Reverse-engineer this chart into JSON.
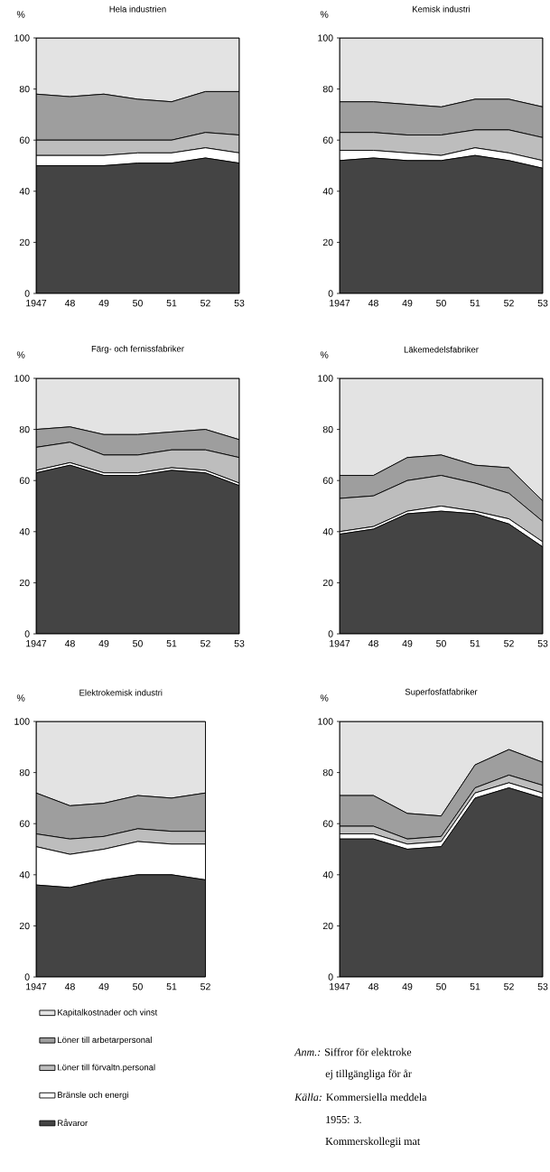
{
  "chart_data": [
    {
      "type": "area",
      "stacked": true,
      "title": "Hela industrien",
      "ylabel": "%",
      "categories": [
        "1947",
        "48",
        "49",
        "50",
        "51",
        "52",
        "53"
      ],
      "ylim": [
        0,
        100
      ],
      "yticks": [
        0,
        20,
        40,
        60,
        80,
        100
      ],
      "series": [
        {
          "color": "#444444",
          "values": [
            50,
            50,
            50,
            51,
            51,
            53,
            51
          ]
        },
        {
          "color": "#ffffff",
          "values": [
            4,
            4,
            4,
            4,
            4,
            4,
            4
          ]
        },
        {
          "color": "#bdbdbd",
          "values": [
            6,
            6,
            6,
            5,
            5,
            6,
            7
          ]
        },
        {
          "color": "#9e9e9e",
          "values": [
            18,
            17,
            18,
            16,
            15,
            16,
            17
          ]
        },
        {
          "color": "#e3e3e3",
          "values": [
            22,
            23,
            22,
            24,
            25,
            21,
            21
          ]
        }
      ]
    },
    {
      "type": "area",
      "stacked": true,
      "title": "Kemisk industri",
      "ylabel": "%",
      "categories": [
        "1947",
        "48",
        "49",
        "50",
        "51",
        "52",
        "53"
      ],
      "ylim": [
        0,
        100
      ],
      "yticks": [
        0,
        20,
        40,
        60,
        80,
        100
      ],
      "series": [
        {
          "color": "#444444",
          "values": [
            52,
            53,
            52,
            52,
            54,
            52,
            49
          ]
        },
        {
          "color": "#ffffff",
          "values": [
            4,
            3,
            3,
            2,
            3,
            3,
            3
          ]
        },
        {
          "color": "#bdbdbd",
          "values": [
            7,
            7,
            7,
            8,
            7,
            9,
            9
          ]
        },
        {
          "color": "#9e9e9e",
          "values": [
            12,
            12,
            12,
            11,
            12,
            12,
            12
          ]
        },
        {
          "color": "#e3e3e3",
          "values": [
            25,
            25,
            26,
            27,
            24,
            24,
            27
          ]
        }
      ]
    },
    {
      "type": "area",
      "stacked": true,
      "title": "Färg- och fernissfabriker",
      "ylabel": "%",
      "categories": [
        "1947",
        "48",
        "49",
        "50",
        "51",
        "52",
        "53"
      ],
      "ylim": [
        0,
        100
      ],
      "yticks": [
        0,
        20,
        40,
        60,
        80,
        100
      ],
      "series": [
        {
          "color": "#444444",
          "values": [
            63,
            66,
            62,
            62,
            64,
            63,
            58
          ]
        },
        {
          "color": "#ffffff",
          "values": [
            1,
            1,
            1,
            1,
            1,
            1,
            1
          ]
        },
        {
          "color": "#bdbdbd",
          "values": [
            9,
            8,
            7,
            7,
            7,
            8,
            10
          ]
        },
        {
          "color": "#9e9e9e",
          "values": [
            7,
            6,
            8,
            8,
            7,
            8,
            7
          ]
        },
        {
          "color": "#e3e3e3",
          "values": [
            20,
            19,
            22,
            22,
            21,
            20,
            24
          ]
        }
      ]
    },
    {
      "type": "area",
      "stacked": true,
      "title": "Läkemedelsfabriker",
      "ylabel": "%",
      "categories": [
        "1947",
        "48",
        "49",
        "50",
        "51",
        "52",
        "53"
      ],
      "ylim": [
        0,
        100
      ],
      "yticks": [
        0,
        20,
        40,
        60,
        80,
        100
      ],
      "series": [
        {
          "color": "#444444",
          "values": [
            39,
            41,
            47,
            48,
            47,
            43,
            34
          ]
        },
        {
          "color": "#ffffff",
          "values": [
            1,
            1,
            1,
            2,
            1,
            2,
            2
          ]
        },
        {
          "color": "#bdbdbd",
          "values": [
            13,
            12,
            12,
            12,
            11,
            10,
            8
          ]
        },
        {
          "color": "#9e9e9e",
          "values": [
            9,
            8,
            9,
            8,
            7,
            10,
            8
          ]
        },
        {
          "color": "#e3e3e3",
          "values": [
            38,
            38,
            31,
            30,
            34,
            35,
            48
          ]
        }
      ]
    },
    {
      "type": "area",
      "stacked": true,
      "title": "Elektrokemisk industri",
      "ylabel": "%",
      "categories": [
        "1947",
        "48",
        "49",
        "50",
        "51",
        "52"
      ],
      "ylim": [
        0,
        100
      ],
      "yticks": [
        0,
        20,
        40,
        60,
        80,
        100
      ],
      "legend": "bottom",
      "series": [
        {
          "name": "Råvaror",
          "color": "#444444",
          "values": [
            36,
            35,
            38,
            40,
            40,
            38
          ]
        },
        {
          "name": "Bränsle och energi",
          "color": "#ffffff",
          "values": [
            15,
            13,
            12,
            13,
            12,
            14
          ]
        },
        {
          "name": "Löner till förvaltn.personal",
          "color": "#bdbdbd",
          "values": [
            5,
            6,
            5,
            5,
            5,
            5
          ]
        },
        {
          "name": "Löner till arbetarpersonal",
          "color": "#9e9e9e",
          "values": [
            16,
            13,
            13,
            13,
            13,
            15
          ]
        },
        {
          "name": "Kapitalkostnader och vinst",
          "color": "#e3e3e3",
          "values": [
            28,
            33,
            32,
            29,
            30,
            28
          ]
        }
      ]
    },
    {
      "type": "area",
      "stacked": true,
      "title": "Superfosfatfabriker",
      "ylabel": "%",
      "categories": [
        "1947",
        "48",
        "49",
        "50",
        "51",
        "52",
        "53"
      ],
      "ylim": [
        0,
        100
      ],
      "yticks": [
        0,
        20,
        40,
        60,
        80,
        100
      ],
      "annotations": [
        "*Anm.:* Siffror för elektroke",
        "ej tillgängliga för år",
        "*Källa:* Kommersiella meddela",
        "1955: 3.",
        "Kommerskollegii mat"
      ],
      "series": [
        {
          "color": "#444444",
          "values": [
            54,
            54,
            50,
            51,
            70,
            74,
            70
          ]
        },
        {
          "color": "#ffffff",
          "values": [
            2,
            2,
            2,
            2,
            2,
            2,
            2
          ]
        },
        {
          "color": "#bdbdbd",
          "values": [
            3,
            3,
            2,
            2,
            2,
            3,
            3
          ]
        },
        {
          "color": "#9e9e9e",
          "values": [
            12,
            12,
            10,
            8,
            9,
            10,
            9
          ]
        },
        {
          "color": "#e3e3e3",
          "values": [
            29,
            29,
            36,
            37,
            17,
            11,
            16
          ]
        }
      ]
    }
  ]
}
